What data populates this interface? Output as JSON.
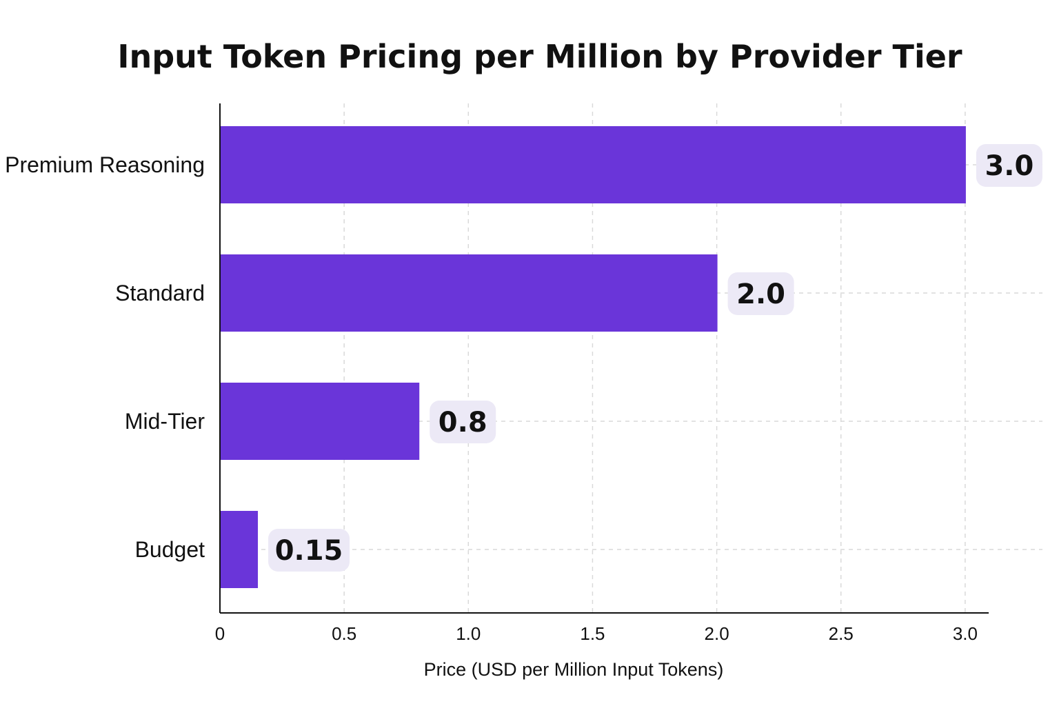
{
  "colors": {
    "bar": "#6a35d9",
    "label_bg": "#ece9f6"
  },
  "chart_data": {
    "type": "bar",
    "orientation": "horizontal",
    "title": "Input Token Pricing per Million by Provider Tier",
    "xlabel": "Price (USD per Million Input Tokens)",
    "ylabel": "",
    "categories": [
      "Premium Reasoning",
      "Standard",
      "Mid-Tier",
      "Budget"
    ],
    "values": [
      3.0,
      2.0,
      0.8,
      0.15
    ],
    "value_labels": [
      "3.0",
      "2.0",
      "0.8",
      "0.15"
    ],
    "xlim": [
      0,
      3.1
    ],
    "xticks": [
      0,
      0.5,
      1.0,
      1.5,
      2.0,
      2.5,
      3.0
    ],
    "xtick_labels": [
      "0",
      "0.5",
      "1.0",
      "1.5",
      "2.0",
      "2.5",
      "3.0"
    ],
    "grid": true
  }
}
